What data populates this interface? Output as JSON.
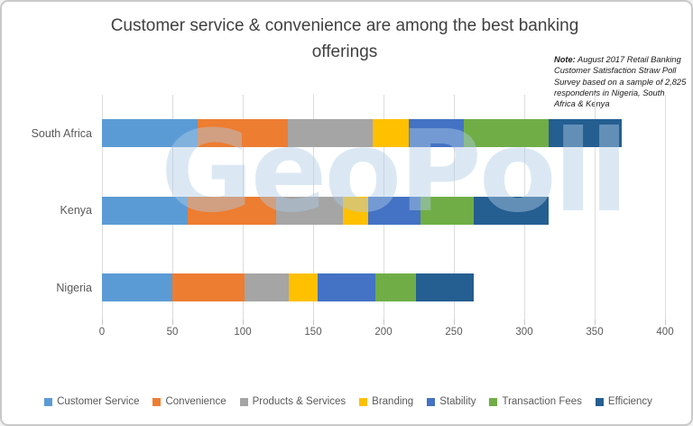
{
  "title": "Customer service & convenience are among the best banking offerings",
  "note": {
    "label": "Note:",
    "text": " August 2017 Retail Banking Customer Satisfaction Straw Poll Survey based on a sample of 2,825 respondents in Nigeria, South Africa & Kenya"
  },
  "watermark": "GeoPoll",
  "colors": {
    "customer_service": "#5B9BD5",
    "convenience": "#ED7D31",
    "products_services": "#A5A5A5",
    "branding": "#FFC000",
    "stability": "#4472C4",
    "transaction_fees": "#70AD47",
    "efficiency": "#255E91",
    "gridline": "#dcdcdc",
    "text_gray": "#595959",
    "title_gray": "#404040"
  },
  "chart_data": {
    "type": "bar",
    "orientation": "horizontal",
    "stacked": true,
    "title": "Customer service & convenience are among the best banking offerings",
    "categories": [
      "South Africa",
      "Kenya",
      "Nigeria"
    ],
    "series": [
      {
        "name": "Customer Service",
        "color": "#5B9BD5",
        "values": [
          68,
          61,
          50
        ]
      },
      {
        "name": "Convenience",
        "color": "#ED7D31",
        "values": [
          64,
          63,
          51
        ]
      },
      {
        "name": "Products & Services",
        "color": "#A5A5A5",
        "values": [
          60,
          47,
          32
        ]
      },
      {
        "name": "Branding",
        "color": "#FFC000",
        "values": [
          26,
          18,
          20
        ]
      },
      {
        "name": "Stability",
        "color": "#4472C4",
        "values": [
          39,
          37,
          41
        ]
      },
      {
        "name": "Transaction Fees",
        "color": "#70AD47",
        "values": [
          60,
          38,
          29
        ]
      },
      {
        "name": "Efficiency",
        "color": "#255E91",
        "values": [
          52,
          53,
          41
        ]
      }
    ],
    "totals": [
      369,
      317,
      264
    ],
    "xlabel": "",
    "ylabel": "",
    "xlim": [
      0,
      400
    ],
    "xticks": [
      0,
      50,
      100,
      150,
      200,
      250,
      300,
      350,
      400
    ],
    "grid": true,
    "legend_position": "bottom"
  }
}
